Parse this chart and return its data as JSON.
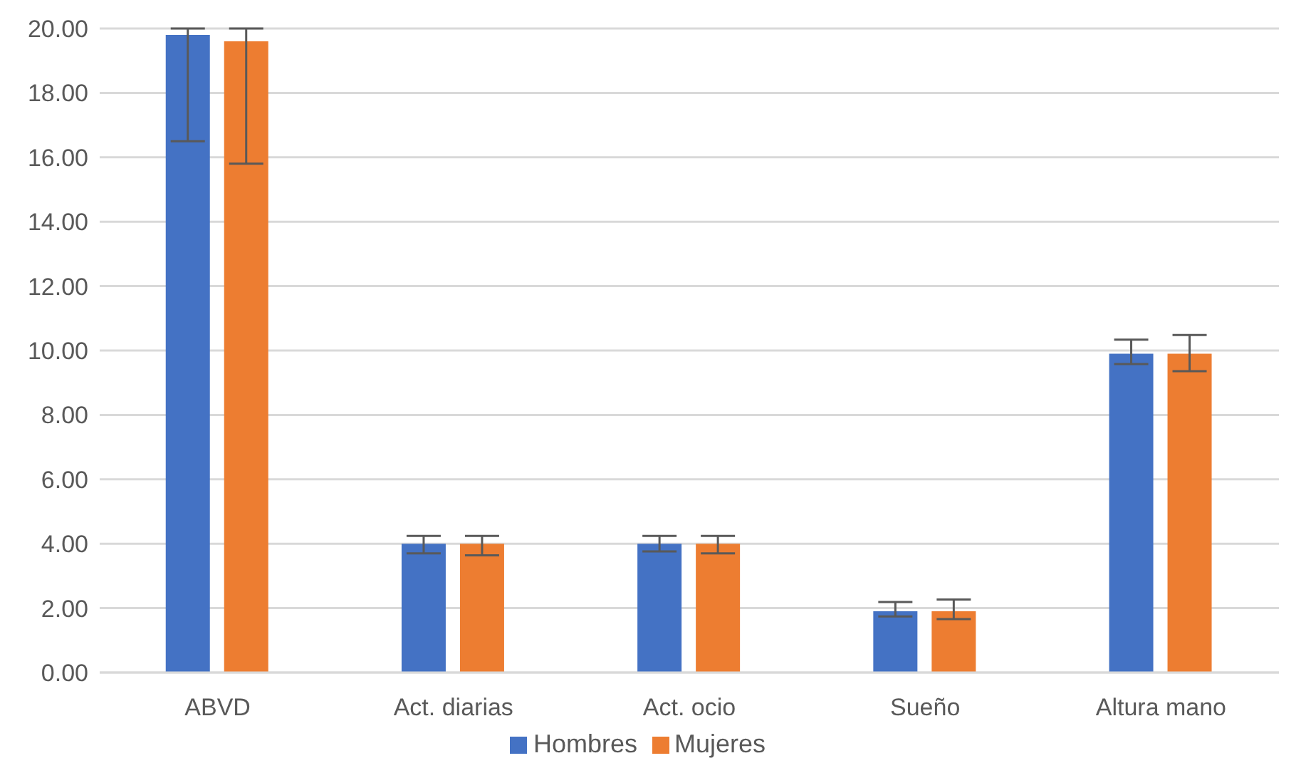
{
  "chart_data": {
    "type": "bar",
    "categories": [
      "ABVD",
      "Act. diarias",
      "Act. ocio",
      "Sueño",
      "Altura mano"
    ],
    "series": [
      {
        "name": "Hombres",
        "color": "#4472c4",
        "values": [
          19.8,
          4.0,
          4.0,
          1.9,
          9.9
        ],
        "errors": [
          [
            16.5,
            20.0
          ],
          [
            3.7,
            4.24
          ],
          [
            3.76,
            4.24
          ],
          [
            1.74,
            2.19
          ],
          [
            9.58,
            10.34
          ]
        ]
      },
      {
        "name": "Mujeres",
        "color": "#ed7d31",
        "values": [
          19.6,
          4.0,
          4.0,
          1.9,
          9.9
        ],
        "errors": [
          [
            15.8,
            20.0
          ],
          [
            3.64,
            4.24
          ],
          [
            3.7,
            4.24
          ],
          [
            1.66,
            2.27
          ],
          [
            9.36,
            10.48
          ]
        ]
      }
    ],
    "ylim": [
      0,
      20
    ],
    "yticks": [
      {
        "value": 0,
        "label": "0.00"
      },
      {
        "value": 2,
        "label": "2.00"
      },
      {
        "value": 4,
        "label": "4.00"
      },
      {
        "value": 6,
        "label": "6.00"
      },
      {
        "value": 8,
        "label": "8.00"
      },
      {
        "value": 10,
        "label": "10.00"
      },
      {
        "value": 12,
        "label": "12.00"
      },
      {
        "value": 14,
        "label": "14.00"
      },
      {
        "value": 16,
        "label": "16.00"
      },
      {
        "value": 18,
        "label": "18.00"
      },
      {
        "value": 20,
        "label": "20.00"
      }
    ],
    "grid": "y",
    "legend": "bottom"
  }
}
